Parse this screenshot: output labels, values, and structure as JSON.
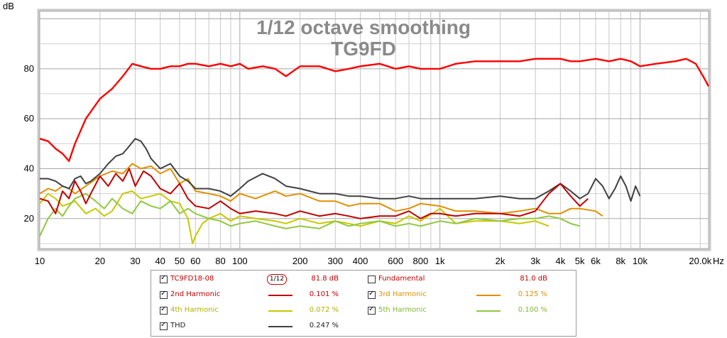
{
  "chart_data": {
    "type": "line",
    "title": "1/12 octave smoothing",
    "subtitle": "TG9FD",
    "ylabel": "dB",
    "xlabel": "Hz",
    "xscale": "log",
    "xlim": [
      10,
      22000
    ],
    "ylim": [
      8,
      103
    ],
    "grid": true,
    "ytick_labels": [
      "20",
      "40",
      "60",
      "80"
    ],
    "yticks": [
      20,
      40,
      60,
      80
    ],
    "xtick_labels": [
      "10",
      "20",
      "30",
      "40",
      "50",
      "60",
      "80",
      "100",
      "200",
      "300",
      "400",
      "600",
      "800",
      "1k",
      "2k",
      "3k",
      "4k",
      "5k",
      "6k",
      "8k",
      "10k",
      "20.0k"
    ],
    "xticks": [
      10,
      20,
      30,
      40,
      50,
      60,
      80,
      100,
      200,
      300,
      400,
      600,
      800,
      1000,
      2000,
      3000,
      4000,
      5000,
      6000,
      8000,
      10000,
      20000
    ],
    "series": [
      {
        "name": "TC9FD18-08",
        "color": "#ff0000",
        "points": [
          [
            10,
            52
          ],
          [
            11,
            51
          ],
          [
            12,
            48
          ],
          [
            13,
            46
          ],
          [
            14,
            43
          ],
          [
            15,
            50
          ],
          [
            17,
            60
          ],
          [
            20,
            68
          ],
          [
            23,
            72
          ],
          [
            26,
            77
          ],
          [
            29,
            82
          ],
          [
            32,
            81
          ],
          [
            36,
            80
          ],
          [
            40,
            80
          ],
          [
            45,
            81
          ],
          [
            50,
            81
          ],
          [
            55,
            82
          ],
          [
            60,
            82
          ],
          [
            70,
            81
          ],
          [
            80,
            82
          ],
          [
            90,
            81
          ],
          [
            100,
            82
          ],
          [
            110,
            80
          ],
          [
            130,
            81
          ],
          [
            150,
            80
          ],
          [
            170,
            77
          ],
          [
            200,
            81
          ],
          [
            250,
            81
          ],
          [
            300,
            79
          ],
          [
            350,
            80
          ],
          [
            400,
            81
          ],
          [
            500,
            82
          ],
          [
            600,
            80
          ],
          [
            700,
            81
          ],
          [
            800,
            80
          ],
          [
            1000,
            80
          ],
          [
            1200,
            82
          ],
          [
            1500,
            83
          ],
          [
            2000,
            83
          ],
          [
            2500,
            83
          ],
          [
            3000,
            84
          ],
          [
            3500,
            84
          ],
          [
            4000,
            84
          ],
          [
            4500,
            83
          ],
          [
            5000,
            83
          ],
          [
            6000,
            84
          ],
          [
            7000,
            83
          ],
          [
            8000,
            84
          ],
          [
            9000,
            83
          ],
          [
            10000,
            81
          ],
          [
            12000,
            82
          ],
          [
            15000,
            83
          ],
          [
            17000,
            84
          ],
          [
            19000,
            82
          ],
          [
            21000,
            76
          ],
          [
            22000,
            73
          ]
        ]
      },
      {
        "name": "2nd Harmonic",
        "color": "#c00000",
        "points": [
          [
            10,
            28
          ],
          [
            11,
            27
          ],
          [
            12,
            22
          ],
          [
            13,
            31
          ],
          [
            14,
            28
          ],
          [
            15,
            35
          ],
          [
            16,
            31
          ],
          [
            17,
            26
          ],
          [
            18,
            30
          ],
          [
            20,
            37
          ],
          [
            22,
            33
          ],
          [
            24,
            38
          ],
          [
            26,
            35
          ],
          [
            28,
            40
          ],
          [
            30,
            33
          ],
          [
            33,
            39
          ],
          [
            36,
            37
          ],
          [
            40,
            32
          ],
          [
            45,
            30
          ],
          [
            50,
            34
          ],
          [
            55,
            28
          ],
          [
            60,
            25
          ],
          [
            70,
            24
          ],
          [
            80,
            27
          ],
          [
            90,
            24
          ],
          [
            100,
            22
          ],
          [
            120,
            23
          ],
          [
            150,
            22
          ],
          [
            170,
            21
          ],
          [
            200,
            23
          ],
          [
            250,
            21
          ],
          [
            300,
            22
          ],
          [
            350,
            21
          ],
          [
            400,
            20
          ],
          [
            500,
            21
          ],
          [
            600,
            21
          ],
          [
            700,
            23
          ],
          [
            800,
            20
          ],
          [
            900,
            22
          ],
          [
            1000,
            22
          ],
          [
            1200,
            21
          ],
          [
            1500,
            22
          ],
          [
            2000,
            22
          ],
          [
            2500,
            21
          ],
          [
            3000,
            23
          ],
          [
            3500,
            30
          ],
          [
            4000,
            34
          ],
          [
            4500,
            29
          ],
          [
            5000,
            25
          ],
          [
            5500,
            28
          ]
        ]
      },
      {
        "name": "3rd Harmonic",
        "color": "#e09000",
        "points": [
          [
            10,
            30
          ],
          [
            11,
            32
          ],
          [
            12,
            31
          ],
          [
            13,
            33
          ],
          [
            14,
            32
          ],
          [
            15,
            30
          ],
          [
            17,
            33
          ],
          [
            20,
            37
          ],
          [
            23,
            39
          ],
          [
            26,
            38
          ],
          [
            29,
            42
          ],
          [
            32,
            40
          ],
          [
            36,
            41
          ],
          [
            40,
            38
          ],
          [
            45,
            40
          ],
          [
            50,
            34
          ],
          [
            55,
            36
          ],
          [
            60,
            31
          ],
          [
            70,
            30
          ],
          [
            80,
            29
          ],
          [
            90,
            27
          ],
          [
            100,
            30
          ],
          [
            120,
            28
          ],
          [
            150,
            31
          ],
          [
            170,
            29
          ],
          [
            200,
            30
          ],
          [
            250,
            27
          ],
          [
            300,
            27
          ],
          [
            350,
            25
          ],
          [
            400,
            26
          ],
          [
            500,
            26
          ],
          [
            600,
            23
          ],
          [
            700,
            24
          ],
          [
            800,
            26
          ],
          [
            1000,
            25
          ],
          [
            1200,
            23
          ],
          [
            1500,
            23
          ],
          [
            2000,
            22
          ],
          [
            2500,
            23
          ],
          [
            3000,
            24
          ],
          [
            3500,
            22
          ],
          [
            4000,
            22
          ],
          [
            4500,
            24
          ],
          [
            5000,
            24
          ],
          [
            6000,
            23
          ],
          [
            6500,
            21
          ]
        ]
      },
      {
        "name": "4th Harmonic",
        "color": "#c8c800",
        "points": [
          [
            10,
            26
          ],
          [
            11,
            30
          ],
          [
            12,
            28
          ],
          [
            13,
            25
          ],
          [
            14,
            26
          ],
          [
            15,
            27
          ],
          [
            17,
            22
          ],
          [
            19,
            24
          ],
          [
            21,
            21
          ],
          [
            23,
            23
          ],
          [
            26,
            30
          ],
          [
            29,
            31
          ],
          [
            32,
            28
          ],
          [
            36,
            29
          ],
          [
            40,
            30
          ],
          [
            45,
            27
          ],
          [
            50,
            26
          ],
          [
            55,
            20
          ],
          [
            58,
            10
          ],
          [
            60,
            13
          ],
          [
            65,
            18
          ],
          [
            70,
            20
          ],
          [
            80,
            22
          ],
          [
            90,
            19
          ],
          [
            100,
            21
          ],
          [
            120,
            20
          ],
          [
            150,
            19
          ],
          [
            170,
            18
          ],
          [
            200,
            20
          ],
          [
            250,
            18
          ],
          [
            300,
            19
          ],
          [
            350,
            18
          ],
          [
            400,
            17
          ],
          [
            500,
            19
          ],
          [
            600,
            18
          ],
          [
            700,
            21
          ],
          [
            800,
            19
          ],
          [
            1000,
            24
          ],
          [
            1200,
            18
          ],
          [
            1500,
            19
          ],
          [
            2000,
            19
          ],
          [
            2500,
            18
          ],
          [
            3000,
            19
          ],
          [
            3500,
            17
          ]
        ]
      },
      {
        "name": "5th Harmonic",
        "color": "#90c840",
        "points": [
          [
            10,
            13
          ],
          [
            11,
            20
          ],
          [
            12,
            24
          ],
          [
            13,
            21
          ],
          [
            14,
            25
          ],
          [
            15,
            28
          ],
          [
            17,
            30
          ],
          [
            19,
            27
          ],
          [
            21,
            24
          ],
          [
            23,
            28
          ],
          [
            26,
            24
          ],
          [
            29,
            22
          ],
          [
            32,
            27
          ],
          [
            36,
            25
          ],
          [
            40,
            24
          ],
          [
            45,
            27
          ],
          [
            50,
            22
          ],
          [
            55,
            24
          ],
          [
            60,
            22
          ],
          [
            70,
            20
          ],
          [
            80,
            19
          ],
          [
            90,
            17
          ],
          [
            100,
            18
          ],
          [
            120,
            19
          ],
          [
            150,
            17
          ],
          [
            170,
            16
          ],
          [
            200,
            17
          ],
          [
            250,
            16
          ],
          [
            300,
            19
          ],
          [
            350,
            17
          ],
          [
            400,
            18
          ],
          [
            500,
            19
          ],
          [
            600,
            17
          ],
          [
            700,
            18
          ],
          [
            800,
            17
          ],
          [
            1000,
            19
          ],
          [
            1200,
            18
          ],
          [
            1500,
            20
          ],
          [
            2000,
            19
          ],
          [
            2500,
            20
          ],
          [
            3000,
            20
          ],
          [
            3500,
            21
          ],
          [
            4000,
            20
          ],
          [
            4500,
            18
          ],
          [
            5000,
            17
          ]
        ]
      },
      {
        "name": "THD",
        "color": "#404040",
        "points": [
          [
            10,
            36
          ],
          [
            11,
            36
          ],
          [
            12,
            35
          ],
          [
            13,
            33
          ],
          [
            14,
            32
          ],
          [
            15,
            36
          ],
          [
            16,
            37
          ],
          [
            17,
            34
          ],
          [
            18,
            35
          ],
          [
            20,
            38
          ],
          [
            22,
            42
          ],
          [
            24,
            45
          ],
          [
            26,
            46
          ],
          [
            28,
            49
          ],
          [
            30,
            52
          ],
          [
            32,
            51
          ],
          [
            34,
            48
          ],
          [
            36,
            44
          ],
          [
            40,
            40
          ],
          [
            45,
            42
          ],
          [
            50,
            37
          ],
          [
            55,
            35
          ],
          [
            60,
            32
          ],
          [
            70,
            32
          ],
          [
            80,
            31
          ],
          [
            90,
            29
          ],
          [
            100,
            32
          ],
          [
            110,
            35
          ],
          [
            130,
            38
          ],
          [
            150,
            36
          ],
          [
            170,
            33
          ],
          [
            200,
            32
          ],
          [
            250,
            30
          ],
          [
            300,
            30
          ],
          [
            350,
            29
          ],
          [
            400,
            29
          ],
          [
            500,
            28
          ],
          [
            600,
            28
          ],
          [
            700,
            29
          ],
          [
            800,
            28
          ],
          [
            1000,
            28
          ],
          [
            1200,
            28
          ],
          [
            1500,
            28
          ],
          [
            2000,
            29
          ],
          [
            2500,
            28
          ],
          [
            3000,
            28
          ],
          [
            3500,
            31
          ],
          [
            4000,
            34
          ],
          [
            4500,
            31
          ],
          [
            5000,
            28
          ],
          [
            5500,
            30
          ],
          [
            6000,
            36
          ],
          [
            6500,
            33
          ],
          [
            7000,
            28
          ],
          [
            7500,
            32
          ],
          [
            8000,
            37
          ],
          [
            8500,
            33
          ],
          [
            9000,
            27
          ],
          [
            9500,
            33
          ],
          [
            10000,
            29
          ]
        ]
      }
    ]
  },
  "legend": {
    "rows": [
      {
        "name": "TC9FD18-08",
        "value": "81.8 dB",
        "checked": true,
        "color": "#d00000",
        "smoothing": "1/12"
      },
      {
        "name": "Fundamental",
        "value": "81.0 dB",
        "checked": false,
        "color": "#d00000"
      },
      {
        "name": "2nd Harmonic",
        "value": "0.101 %",
        "checked": true,
        "color": "#c00000"
      },
      {
        "name": "3rd Harmonic",
        "value": "0.125 %",
        "checked": true,
        "color": "#e09000"
      },
      {
        "name": "4th Harmonic",
        "value": "0.072 %",
        "checked": true,
        "color": "#c8c800"
      },
      {
        "name": "5th Harmonic",
        "value": "0.100 %",
        "checked": true,
        "color": "#90c840"
      },
      {
        "name": "THD",
        "value": "0.247 %",
        "checked": true,
        "color": "#404040"
      }
    ],
    "checkmark": "✓"
  }
}
